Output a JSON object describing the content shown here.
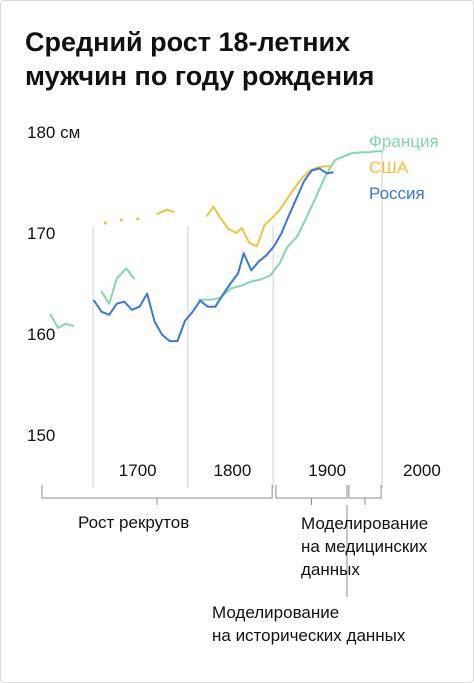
{
  "title": "Средний рост 18-летних мужчин по году рождения",
  "annotations": {
    "recruits": "Рост рекрутов",
    "medical_line1": "Моделирование",
    "medical_line2": "на медицинских",
    "medical_line3": "данных",
    "historical_line1": "Моделирование",
    "historical_line2": "на исторических данных"
  },
  "colors": {
    "france": "#7fd9a9",
    "usa": "#f3c23c",
    "russia": "#3a78d6",
    "gridline": "#cfcfcf",
    "text": "#111111"
  },
  "chart_data": {
    "type": "line",
    "title": "Средний рост 18-летних мужчин по году рождения",
    "xlabel": "",
    "ylabel": "",
    "ylim": [
      150,
      180
    ],
    "xlim": [
      1620,
      2000
    ],
    "y_ticks": [
      {
        "value": 180,
        "label": "180 см"
      },
      {
        "value": 170,
        "label": "170"
      },
      {
        "value": 160,
        "label": "160"
      },
      {
        "value": 150,
        "label": "150"
      }
    ],
    "x_ticks": [
      {
        "value": 1700,
        "label": "1700"
      },
      {
        "value": 1800,
        "label": "1800"
      },
      {
        "value": 1900,
        "label": "1900"
      },
      {
        "value": 2000,
        "label": "2000"
      }
    ],
    "vertical_lines": [
      1675,
      1775,
      1865,
      1980
    ],
    "legend_position": "top-right",
    "brackets": [
      {
        "from": 1621,
        "to": 1864,
        "label": "recruits"
      },
      {
        "from": 1868,
        "to": 1943,
        "label": "historical"
      },
      {
        "from": 1945,
        "to": 1979,
        "label": "medical"
      }
    ],
    "series": [
      {
        "name": "Франция",
        "color": "#7fd9a9",
        "segments": [
          [
            [
              1630,
              161.9
            ],
            [
              1638,
              160.6
            ],
            [
              1646,
              161.0
            ],
            [
              1654,
              160.8
            ]
          ],
          [
            [
              1684,
              164.2
            ],
            [
              1692,
              163.0
            ],
            [
              1700,
              165.5
            ],
            [
              1710,
              166.5
            ],
            [
              1718,
              165.5
            ]
          ],
          [
            [
              1787,
              163.4
            ],
            [
              1800,
              163.4
            ],
            [
              1810,
              163.6
            ],
            [
              1820,
              164.5
            ],
            [
              1832,
              164.8
            ],
            [
              1842,
              165.2
            ],
            [
              1852,
              165.4
            ],
            [
              1862,
              165.8
            ],
            [
              1872,
              167.0
            ],
            [
              1880,
              168.6
            ],
            [
              1890,
              169.6
            ],
            [
              1900,
              171.5
            ],
            [
              1910,
              173.5
            ],
            [
              1920,
              175.6
            ],
            [
              1930,
              177.2
            ],
            [
              1940,
              177.6
            ],
            [
              1948,
              177.9
            ],
            [
              1958,
              178.0
            ],
            [
              1966,
              178.0
            ],
            [
              1974,
              178.1
            ],
            [
              1980,
              178.1
            ]
          ]
        ]
      },
      {
        "name": "США",
        "color": "#f3c23c",
        "segments": [
          [
            [
              1688,
              171.0
            ]
          ],
          [
            [
              1705,
              171.3
            ]
          ],
          [
            [
              1722,
              171.4
            ]
          ],
          [
            [
              1743,
              171.9
            ],
            [
              1753,
              172.3
            ],
            [
              1760,
              172.1
            ]
          ],
          [
            [
              1795,
              171.7
            ],
            [
              1802,
              172.6
            ],
            [
              1810,
              171.4
            ],
            [
              1818,
              170.4
            ],
            [
              1826,
              170.0
            ],
            [
              1832,
              170.5
            ],
            [
              1840,
              169.0
            ],
            [
              1848,
              168.7
            ],
            [
              1856,
              170.8
            ],
            [
              1864,
              171.5
            ],
            [
              1872,
              172.3
            ],
            [
              1880,
              173.4
            ],
            [
              1888,
              174.5
            ],
            [
              1896,
              175.5
            ],
            [
              1904,
              176.2
            ],
            [
              1912,
              176.5
            ],
            [
              1920,
              176.6
            ],
            [
              1926,
              176.6
            ]
          ]
        ]
      },
      {
        "name": "Россия",
        "color": "#3a78d6",
        "segments": [
          [
            [
              1676,
              163.3
            ],
            [
              1684,
              162.2
            ],
            [
              1692,
              161.9
            ],
            [
              1700,
              163.0
            ],
            [
              1708,
              163.2
            ],
            [
              1716,
              162.4
            ],
            [
              1724,
              162.7
            ],
            [
              1732,
              164.0
            ],
            [
              1740,
              161.2
            ],
            [
              1748,
              159.9
            ],
            [
              1756,
              159.3
            ],
            [
              1764,
              159.3
            ],
            [
              1772,
              161.3
            ],
            [
              1780,
              162.2
            ],
            [
              1788,
              163.3
            ],
            [
              1796,
              162.7
            ],
            [
              1804,
              162.7
            ],
            [
              1812,
              163.9
            ],
            [
              1820,
              165.0
            ],
            [
              1828,
              166.0
            ],
            [
              1834,
              168.0
            ],
            [
              1842,
              166.3
            ],
            [
              1850,
              167.2
            ],
            [
              1858,
              167.8
            ],
            [
              1866,
              168.7
            ],
            [
              1874,
              170.0
            ],
            [
              1882,
              171.8
            ],
            [
              1890,
              173.5
            ],
            [
              1898,
              175.2
            ],
            [
              1906,
              176.2
            ],
            [
              1914,
              176.4
            ],
            [
              1922,
              175.9
            ],
            [
              1928,
              176.0
            ]
          ]
        ]
      }
    ]
  }
}
